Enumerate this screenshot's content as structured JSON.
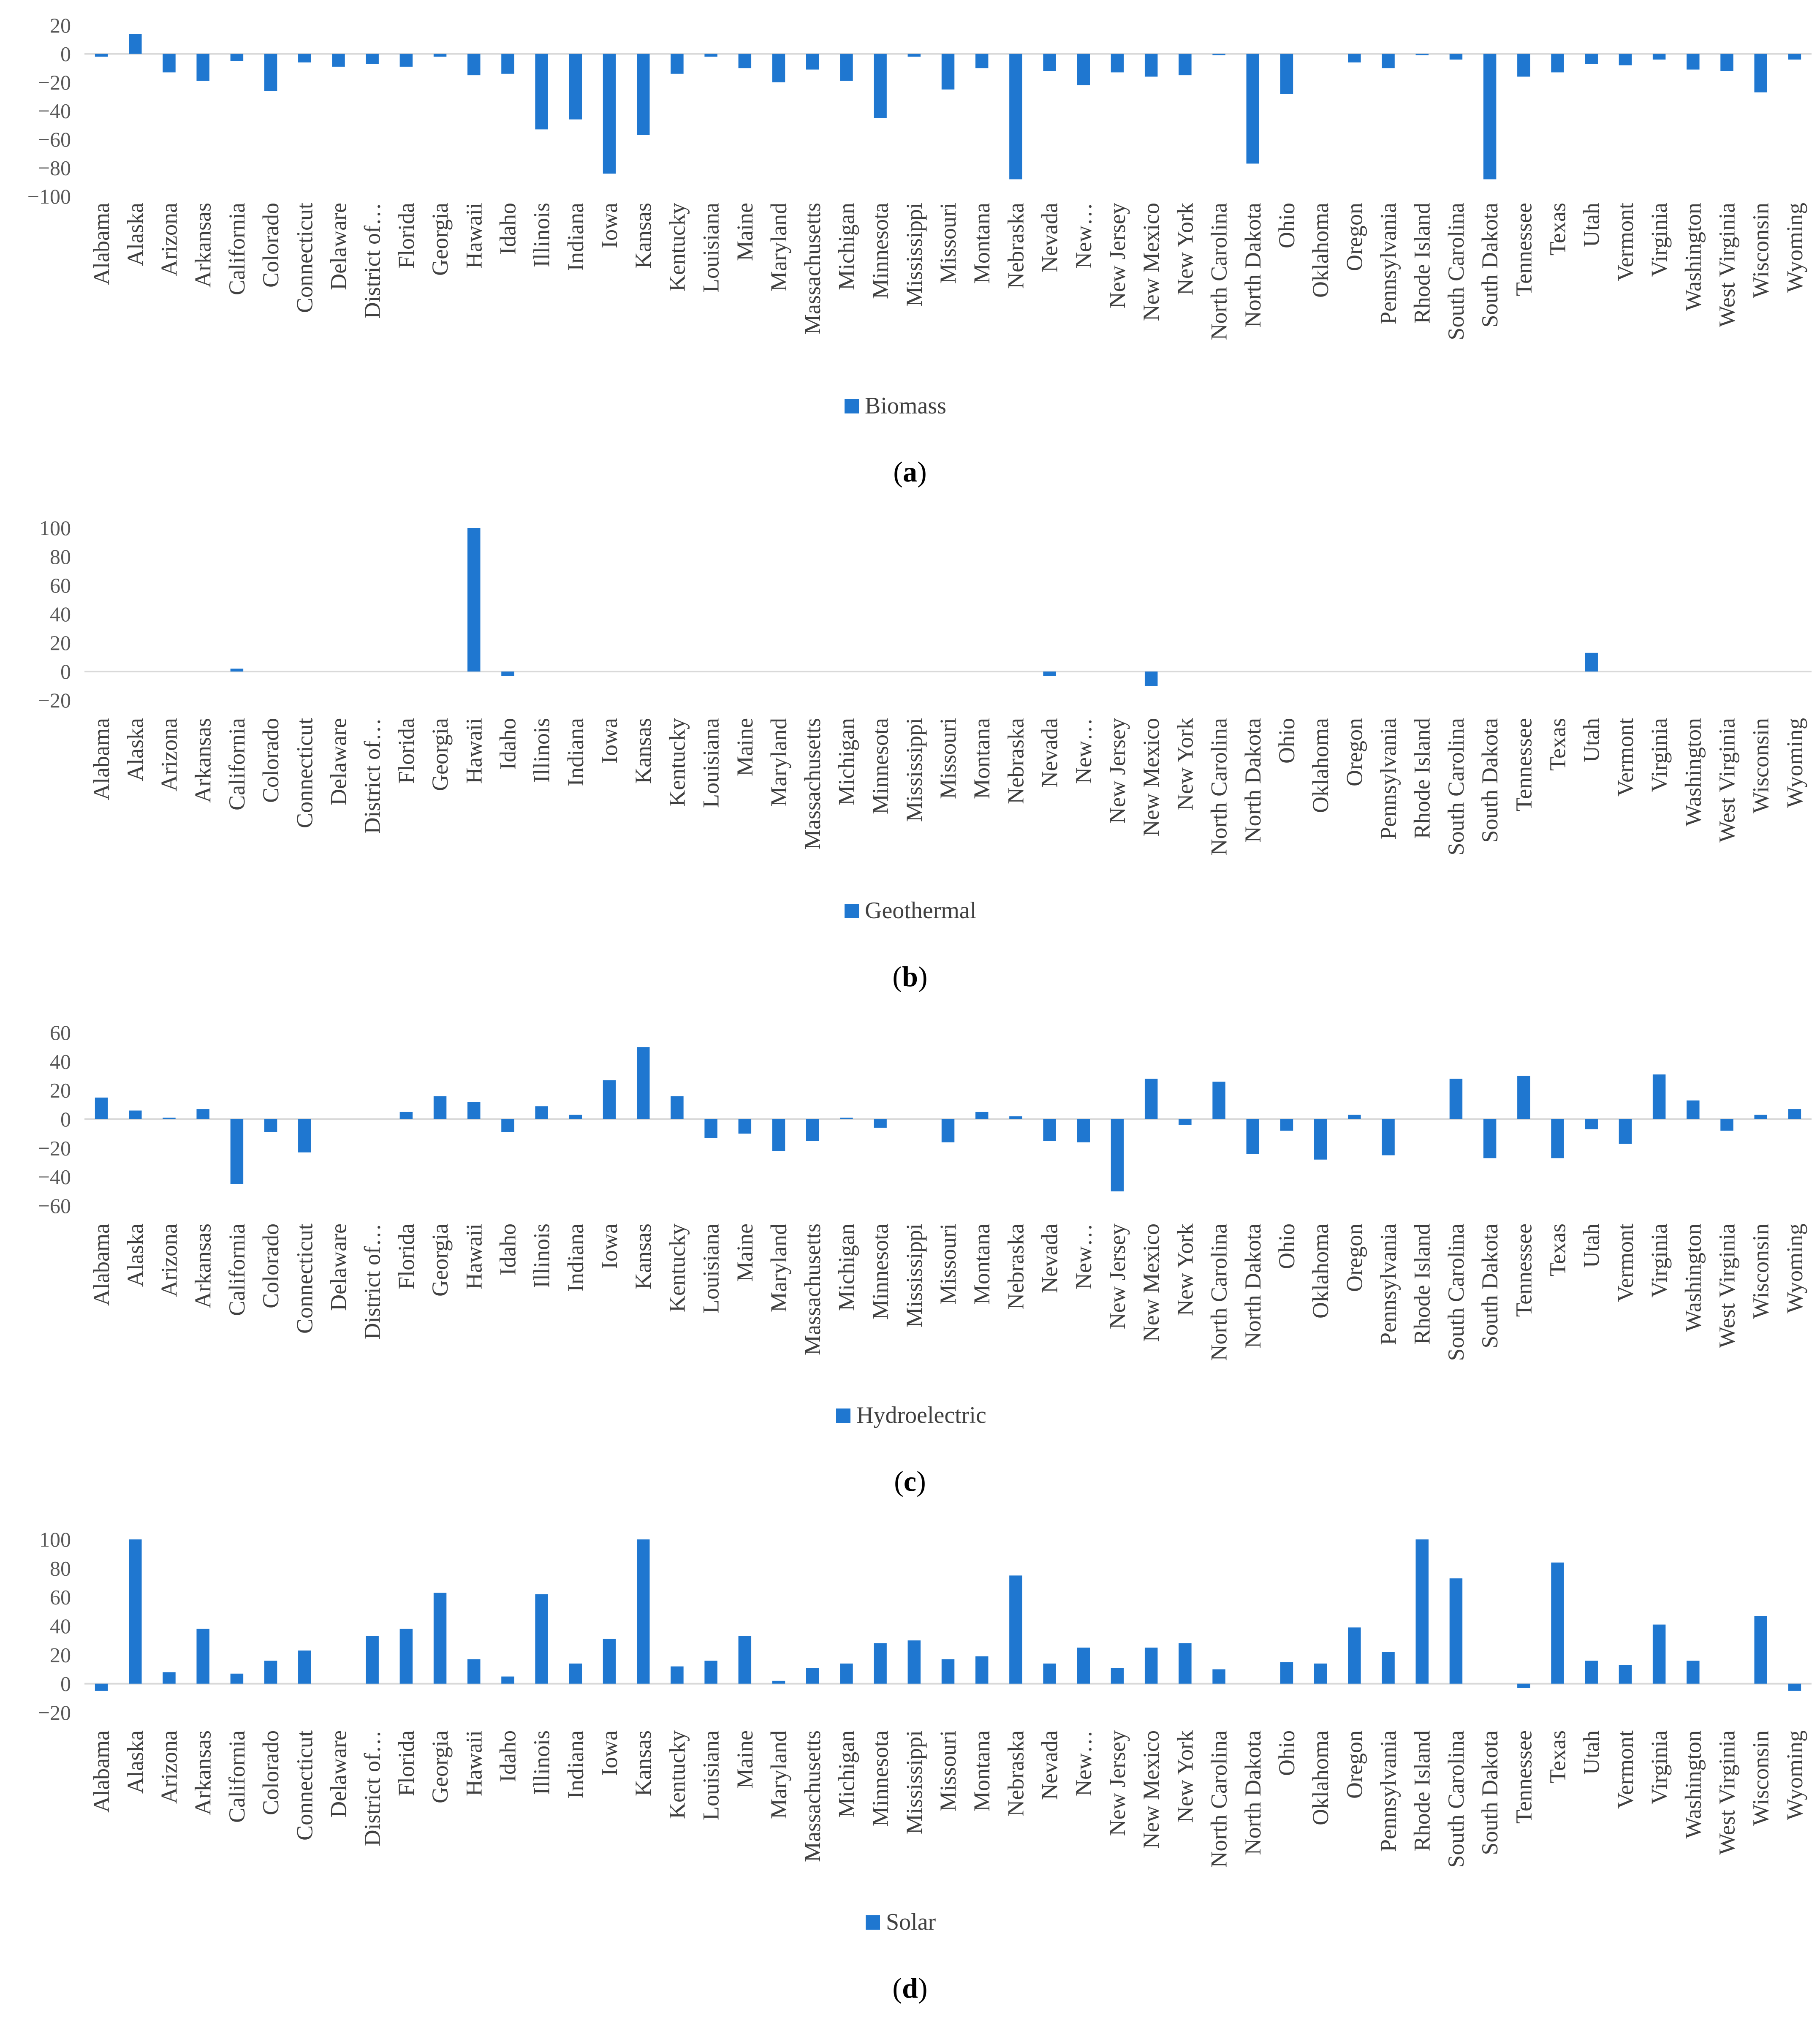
{
  "chart_data": [
    {
      "type": "bar",
      "panel_label": "a",
      "series": [
        {
          "name": "Biomass",
          "values": [
            -2,
            14,
            -13,
            -19,
            -5,
            -26,
            -6,
            -9,
            -7,
            -9,
            -2,
            -15,
            -14,
            -53,
            -46,
            -84,
            -57,
            -14,
            -2,
            -10,
            -20,
            -11,
            -19,
            -45,
            -2,
            -25,
            -10,
            -88,
            -12,
            -22,
            -13,
            -16,
            -15,
            -1,
            -77,
            -28,
            0,
            -6,
            -10,
            -1,
            -4,
            -88,
            -16,
            -13,
            -7,
            -8,
            -4,
            -11,
            -12,
            -27,
            -4
          ]
        }
      ],
      "categories": [
        "Alabama",
        "Alaska",
        "Arizona",
        "Arkansas",
        "California",
        "Colorado",
        "Connecticut",
        "Delaware",
        "District of…",
        "Florida",
        "Georgia",
        "Hawaii",
        "Idaho",
        "Illinois",
        "Indiana",
        "Iowa",
        "Kansas",
        "Kentucky",
        "Louisiana",
        "Maine",
        "Maryland",
        "Massachusetts",
        "Michigan",
        "Minnesota",
        "Mississippi",
        "Missouri",
        "Montana",
        "Nebraska",
        "Nevada",
        "New…",
        "New Jersey",
        "New Mexico",
        "New York",
        "North Carolina",
        "North Dakota",
        "Ohio",
        "Oklahoma",
        "Oregon",
        "Pennsylvania",
        "Rhode Island",
        "South Carolina",
        "South Dakota",
        "Tennessee",
        "Texas",
        "Utah",
        "Vermont",
        "Virginia",
        "Washington",
        "West Virginia",
        "Wisconsin",
        "Wyoming"
      ],
      "ylim": [
        -100,
        20
      ],
      "yticks": [
        "20",
        "0",
        "−20",
        "−40",
        "−60",
        "−80",
        "−100"
      ],
      "legend_position": "bottom",
      "color": "#1f77d0"
    },
    {
      "type": "bar",
      "panel_label": "b",
      "series": [
        {
          "name": "Geothermal",
          "values": [
            0,
            0,
            0,
            0,
            2,
            0,
            0,
            0,
            0,
            0,
            0,
            100,
            -3,
            0,
            0,
            0,
            0,
            0,
            0,
            0,
            0,
            0,
            0,
            0,
            0,
            0,
            0,
            0,
            -3,
            0,
            0,
            -10,
            0,
            0,
            0,
            0,
            0,
            0,
            0,
            0,
            0,
            0,
            0,
            0,
            13,
            0,
            0,
            0,
            0,
            0,
            0
          ]
        }
      ],
      "categories": [
        "Alabama",
        "Alaska",
        "Arizona",
        "Arkansas",
        "California",
        "Colorado",
        "Connecticut",
        "Delaware",
        "District of…",
        "Florida",
        "Georgia",
        "Hawaii",
        "Idaho",
        "Illinois",
        "Indiana",
        "Iowa",
        "Kansas",
        "Kentucky",
        "Louisiana",
        "Maine",
        "Maryland",
        "Massachusetts",
        "Michigan",
        "Minnesota",
        "Mississippi",
        "Missouri",
        "Montana",
        "Nebraska",
        "Nevada",
        "New…",
        "New Jersey",
        "New Mexico",
        "New York",
        "North Carolina",
        "North Dakota",
        "Ohio",
        "Oklahoma",
        "Oregon",
        "Pennsylvania",
        "Rhode Island",
        "South Carolina",
        "South Dakota",
        "Tennessee",
        "Texas",
        "Utah",
        "Vermont",
        "Virginia",
        "Washington",
        "West Virginia",
        "Wisconsin",
        "Wyoming"
      ],
      "ylim": [
        -20,
        100
      ],
      "yticks": [
        "100",
        "80",
        "60",
        "40",
        "20",
        "0",
        "−20"
      ],
      "legend_position": "bottom",
      "color": "#1f77d0"
    },
    {
      "type": "bar",
      "panel_label": "c",
      "series": [
        {
          "name": "Hydroelectric",
          "values": [
            15,
            6,
            1,
            7,
            -45,
            -9,
            -23,
            0,
            0,
            5,
            16,
            12,
            -9,
            9,
            3,
            27,
            50,
            16,
            -13,
            -10,
            -22,
            -15,
            1,
            -6,
            0,
            -16,
            5,
            2,
            -15,
            -16,
            -50,
            28,
            -4,
            26,
            -24,
            -8,
            -28,
            3,
            -25,
            0,
            28,
            -27,
            30,
            -27,
            -7,
            -17,
            31,
            13,
            -8,
            3,
            7
          ]
        }
      ],
      "categories": [
        "Alabama",
        "Alaska",
        "Arizona",
        "Arkansas",
        "California",
        "Colorado",
        "Connecticut",
        "Delaware",
        "District of…",
        "Florida",
        "Georgia",
        "Hawaii",
        "Idaho",
        "Illinois",
        "Indiana",
        "Iowa",
        "Kansas",
        "Kentucky",
        "Louisiana",
        "Maine",
        "Maryland",
        "Massachusetts",
        "Michigan",
        "Minnesota",
        "Mississippi",
        "Missouri",
        "Montana",
        "Nebraska",
        "Nevada",
        "New…",
        "New Jersey",
        "New Mexico",
        "New York",
        "North Carolina",
        "North Dakota",
        "Ohio",
        "Oklahoma",
        "Oregon",
        "Pennsylvania",
        "Rhode Island",
        "South Carolina",
        "South Dakota",
        "Tennessee",
        "Texas",
        "Utah",
        "Vermont",
        "Virginia",
        "Washington",
        "West Virginia",
        "Wisconsin",
        "Wyoming"
      ],
      "ylim": [
        -60,
        60
      ],
      "yticks": [
        "60",
        "40",
        "20",
        "0",
        "−20",
        "−40",
        "−60"
      ],
      "legend_position": "bottom",
      "color": "#1f77d0"
    },
    {
      "type": "bar",
      "panel_label": "d",
      "series": [
        {
          "name": "Solar",
          "values": [
            -5,
            100,
            8,
            38,
            7,
            16,
            23,
            0,
            33,
            38,
            63,
            17,
            5,
            62,
            14,
            31,
            100,
            12,
            16,
            33,
            2,
            11,
            14,
            28,
            30,
            17,
            19,
            75,
            14,
            25,
            11,
            25,
            28,
            10,
            0,
            15,
            14,
            39,
            22,
            100,
            73,
            0,
            -3,
            84,
            16,
            13,
            41,
            16,
            0,
            47,
            -5
          ]
        }
      ],
      "categories": [
        "Alabama",
        "Alaska",
        "Arizona",
        "Arkansas",
        "California",
        "Colorado",
        "Connecticut",
        "Delaware",
        "District of…",
        "Florida",
        "Georgia",
        "Hawaii",
        "Idaho",
        "Illinois",
        "Indiana",
        "Iowa",
        "Kansas",
        "Kentucky",
        "Louisiana",
        "Maine",
        "Maryland",
        "Massachusetts",
        "Michigan",
        "Minnesota",
        "Mississippi",
        "Missouri",
        "Montana",
        "Nebraska",
        "Nevada",
        "New…",
        "New Jersey",
        "New Mexico",
        "New York",
        "North Carolina",
        "North Dakota",
        "Ohio",
        "Oklahoma",
        "Oregon",
        "Pennsylvania",
        "Rhode Island",
        "South Carolina",
        "South Dakota",
        "Tennessee",
        "Texas",
        "Utah",
        "Vermont",
        "Virginia",
        "Washington",
        "West Virginia",
        "Wisconsin",
        "Wyoming"
      ],
      "ylim": [
        -20,
        100
      ],
      "yticks": [
        "100",
        "80",
        "60",
        "40",
        "20",
        "0",
        "−20"
      ],
      "legend_position": "bottom",
      "color": "#1f77d0"
    }
  ]
}
